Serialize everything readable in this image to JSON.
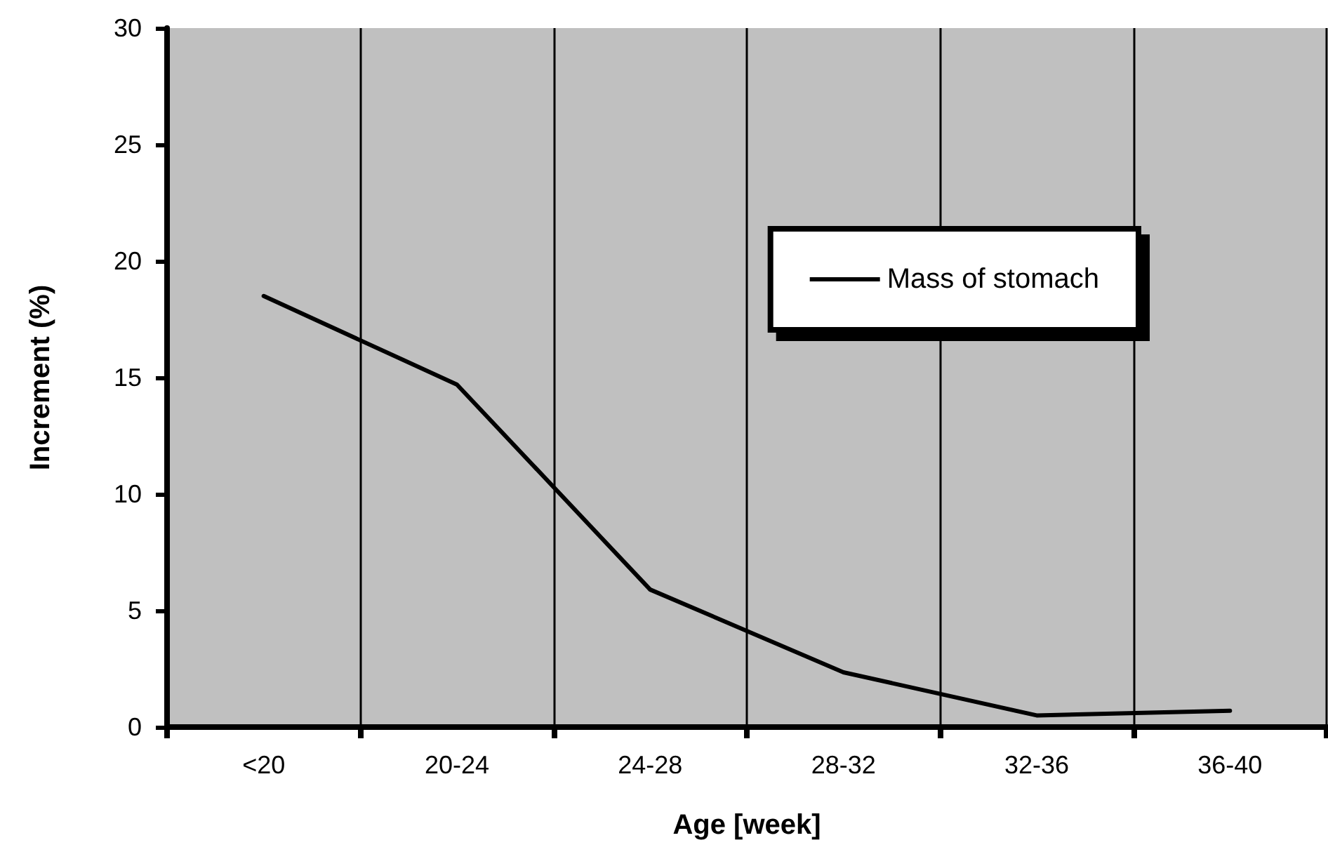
{
  "chart_data": {
    "type": "line",
    "xlabel": "Age [week]",
    "ylabel": "Increment (%)",
    "categories": [
      "<20",
      "20-24",
      "24-28",
      "28-32",
      "32-36",
      "36-40"
    ],
    "series": [
      {
        "name": "Mass of stomach",
        "color": "#000000",
        "values": [
          18.5,
          14.7,
          5.9,
          2.35,
          0.5,
          0.7
        ]
      }
    ],
    "ylim": [
      0,
      30
    ],
    "yticks": [
      0,
      5,
      10,
      15,
      20,
      25,
      30
    ],
    "grid": "x",
    "legend": "right",
    "marker": "none",
    "line_style": "solid"
  }
}
